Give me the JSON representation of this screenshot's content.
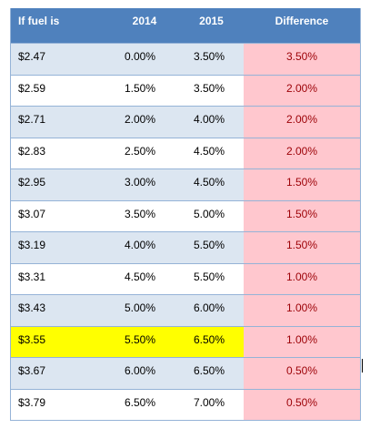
{
  "header": {
    "col1": "If fuel is",
    "col2": "2014",
    "col3": "2015",
    "col4": "Difference"
  },
  "rows": [
    {
      "price": "$2.47",
      "y2014": "0.00%",
      "y2015": "3.50%",
      "diff": "3.50%"
    },
    {
      "price": "$2.59",
      "y2014": "1.50%",
      "y2015": "3.50%",
      "diff": "2.00%"
    },
    {
      "price": "$2.71",
      "y2014": "2.00%",
      "y2015": "4.00%",
      "diff": "2.00%"
    },
    {
      "price": "$2.83",
      "y2014": "2.50%",
      "y2015": "4.50%",
      "diff": "2.00%"
    },
    {
      "price": "$2.95",
      "y2014": "3.00%",
      "y2015": "4.50%",
      "diff": "1.50%"
    },
    {
      "price": "$3.07",
      "y2014": "3.50%",
      "y2015": "5.00%",
      "diff": "1.50%"
    },
    {
      "price": "$3.19",
      "y2014": "4.00%",
      "y2015": "5.50%",
      "diff": "1.50%"
    },
    {
      "price": "$3.31",
      "y2014": "4.50%",
      "y2015": "5.50%",
      "diff": "1.00%"
    },
    {
      "price": "$3.43",
      "y2014": "5.00%",
      "y2015": "6.00%",
      "diff": "1.00%"
    },
    {
      "price": "$3.55",
      "y2014": "5.50%",
      "y2015": "6.50%",
      "diff": "1.00%"
    },
    {
      "price": "$3.67",
      "y2014": "6.00%",
      "y2015": "6.50%",
      "diff": "0.50%"
    },
    {
      "price": "$3.79",
      "y2014": "6.50%",
      "y2015": "7.00%",
      "diff": "0.50%"
    }
  ],
  "colors": {
    "header_bg": "#4f81bd",
    "band_bg": "#dce6f1",
    "difference_bg": "#ffc7ce",
    "difference_text": "#9c0006",
    "highlight_bg": "#ffff00"
  }
}
